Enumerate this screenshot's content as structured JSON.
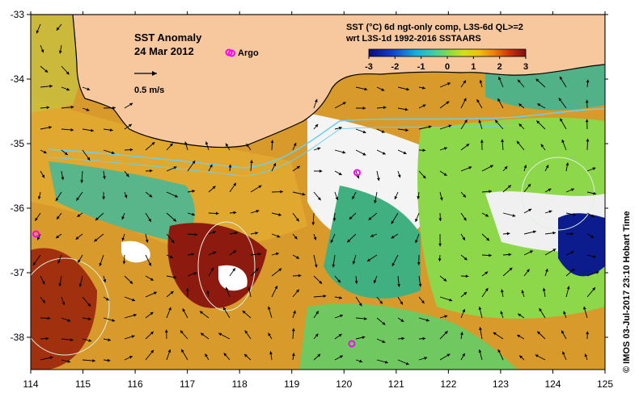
{
  "map": {
    "title": "SST Anomaly",
    "date": "24 Mar 2012",
    "argo_label": "Argo",
    "scale_label": "0.5 m/s",
    "product_line1": "SST (°C) 6d ngt-only comp, L3S-6d QL>=2",
    "product_line2": "wrt L3S-1d 1992-2016 SSTAARS",
    "credit": "© IMOS 03-Jul-2017 23:10 Hobart Time",
    "colorbar": {
      "ticks": [
        "-3",
        "-2",
        "-1",
        "0",
        "1",
        "2",
        "3"
      ],
      "range": [
        -3,
        3
      ]
    },
    "lon_ticks": [
      "114",
      "115",
      "116",
      "117",
      "118",
      "119",
      "120",
      "121",
      "122",
      "123",
      "124",
      "125"
    ],
    "lat_ticks": [
      "-33",
      "-34",
      "-35",
      "-36",
      "-37",
      "-38"
    ],
    "lon_range": [
      114,
      125
    ],
    "lat_range": [
      -38.5,
      -33
    ],
    "argo_floats": [
      {
        "lon": 114.1,
        "lat": -36.4
      },
      {
        "lon": 117.85,
        "lat": -33.6
      },
      {
        "lon": 120.25,
        "lat": -35.45
      },
      {
        "lon": 120.15,
        "lat": -38.1
      }
    ],
    "colors": {
      "land": "#f7c79d",
      "ocean_warm": "#e0a020",
      "ocean_hot": "#9e1a10",
      "ocean_cool": "#2fb8a0",
      "ocean_green": "#88d040",
      "no_data": "#ffffff",
      "cloud_cold": "#0a1a8a",
      "argo": "#ff00ff"
    }
  }
}
